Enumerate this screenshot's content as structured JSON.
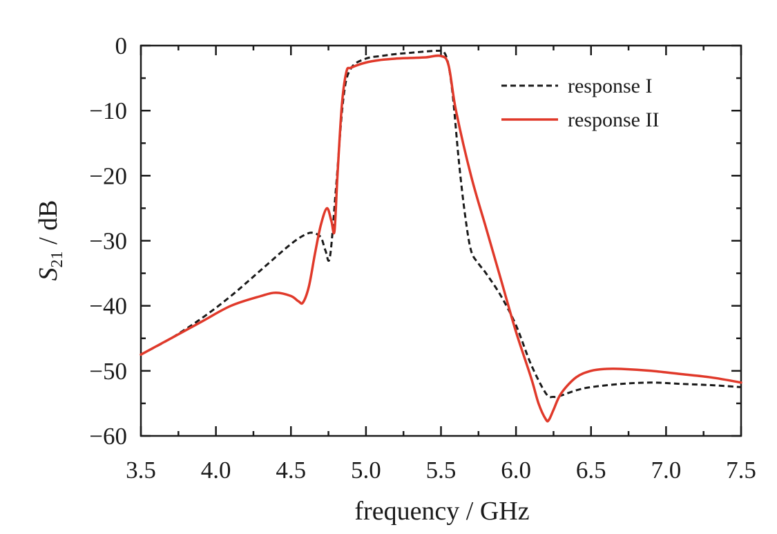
{
  "chart_data": {
    "type": "line",
    "title": "",
    "xlabel": "frequency / GHz",
    "ylabel": {
      "main": "S",
      "sub": "21",
      "rest": " / dB"
    },
    "xlim": [
      3.5,
      7.5
    ],
    "ylim": [
      -60,
      0
    ],
    "xticks": [
      3.5,
      4.0,
      4.5,
      5.0,
      5.5,
      6.0,
      6.5,
      7.0,
      7.5
    ],
    "xtick_labels": [
      "3.5",
      "4.0",
      "4.5",
      "5.0",
      "5.5",
      "6.0",
      "6.5",
      "7.0",
      "7.5"
    ],
    "yticks": [
      0,
      -10,
      -20,
      -30,
      -40,
      -50,
      -60
    ],
    "ytick_labels": [
      "0",
      "−10",
      "−20",
      "−30",
      "−40",
      "−50",
      "−60"
    ],
    "grid": false,
    "legend_position": "top-right",
    "series": [
      {
        "name": "response I",
        "color": "#1a1a1a",
        "style": "dashed",
        "x": [
          3.5,
          3.7,
          3.9,
          4.1,
          4.3,
          4.5,
          4.6,
          4.65,
          4.7,
          4.73,
          4.76,
          4.8,
          4.85,
          4.9,
          5.0,
          5.1,
          5.2,
          5.3,
          5.4,
          5.48,
          5.52,
          5.55,
          5.58,
          5.62,
          5.66,
          5.7,
          5.75,
          5.8,
          5.9,
          6.0,
          6.1,
          6.2,
          6.25,
          6.3,
          6.4,
          6.5,
          6.7,
          6.9,
          7.1,
          7.3,
          7.5
        ],
        "values": [
          -47.5,
          -45.0,
          -42.0,
          -38.5,
          -34.5,
          -30.5,
          -29.0,
          -28.8,
          -29.5,
          -31.5,
          -32.5,
          -22.0,
          -8.0,
          -3.5,
          -2.0,
          -1.6,
          -1.3,
          -1.1,
          -0.9,
          -0.8,
          -1.0,
          -3.0,
          -8.0,
          -18.0,
          -26.0,
          -31.5,
          -33.5,
          -35.0,
          -38.5,
          -43.0,
          -49.0,
          -53.5,
          -54.0,
          -53.8,
          -53.0,
          -52.5,
          -52.0,
          -51.8,
          -52.0,
          -52.2,
          -52.5
        ]
      },
      {
        "name": "response II",
        "color": "#e0392a",
        "style": "solid",
        "x": [
          3.5,
          3.7,
          3.9,
          4.1,
          4.3,
          4.4,
          4.5,
          4.55,
          4.58,
          4.62,
          4.66,
          4.7,
          4.74,
          4.77,
          4.79,
          4.81,
          4.84,
          4.87,
          4.9,
          5.0,
          5.1,
          5.2,
          5.3,
          5.4,
          5.5,
          5.55,
          5.6,
          5.7,
          5.8,
          5.9,
          6.0,
          6.1,
          6.15,
          6.2,
          6.22,
          6.25,
          6.3,
          6.4,
          6.5,
          6.6,
          6.7,
          6.9,
          7.1,
          7.3,
          7.5
        ],
        "values": [
          -47.5,
          -45.0,
          -42.5,
          -40.0,
          -38.5,
          -38.0,
          -38.5,
          -39.3,
          -39.5,
          -37.0,
          -32.0,
          -27.5,
          -25.0,
          -27.0,
          -28.5,
          -20.0,
          -9.0,
          -4.0,
          -3.4,
          -2.6,
          -2.2,
          -2.0,
          -1.9,
          -1.8,
          -1.6,
          -3.0,
          -10.0,
          -20.0,
          -28.0,
          -36.0,
          -44.0,
          -51.0,
          -55.0,
          -57.5,
          -57.5,
          -56.0,
          -53.5,
          -51.0,
          -50.0,
          -49.7,
          -49.7,
          -50.0,
          -50.5,
          -51.0,
          -51.8
        ]
      }
    ]
  }
}
